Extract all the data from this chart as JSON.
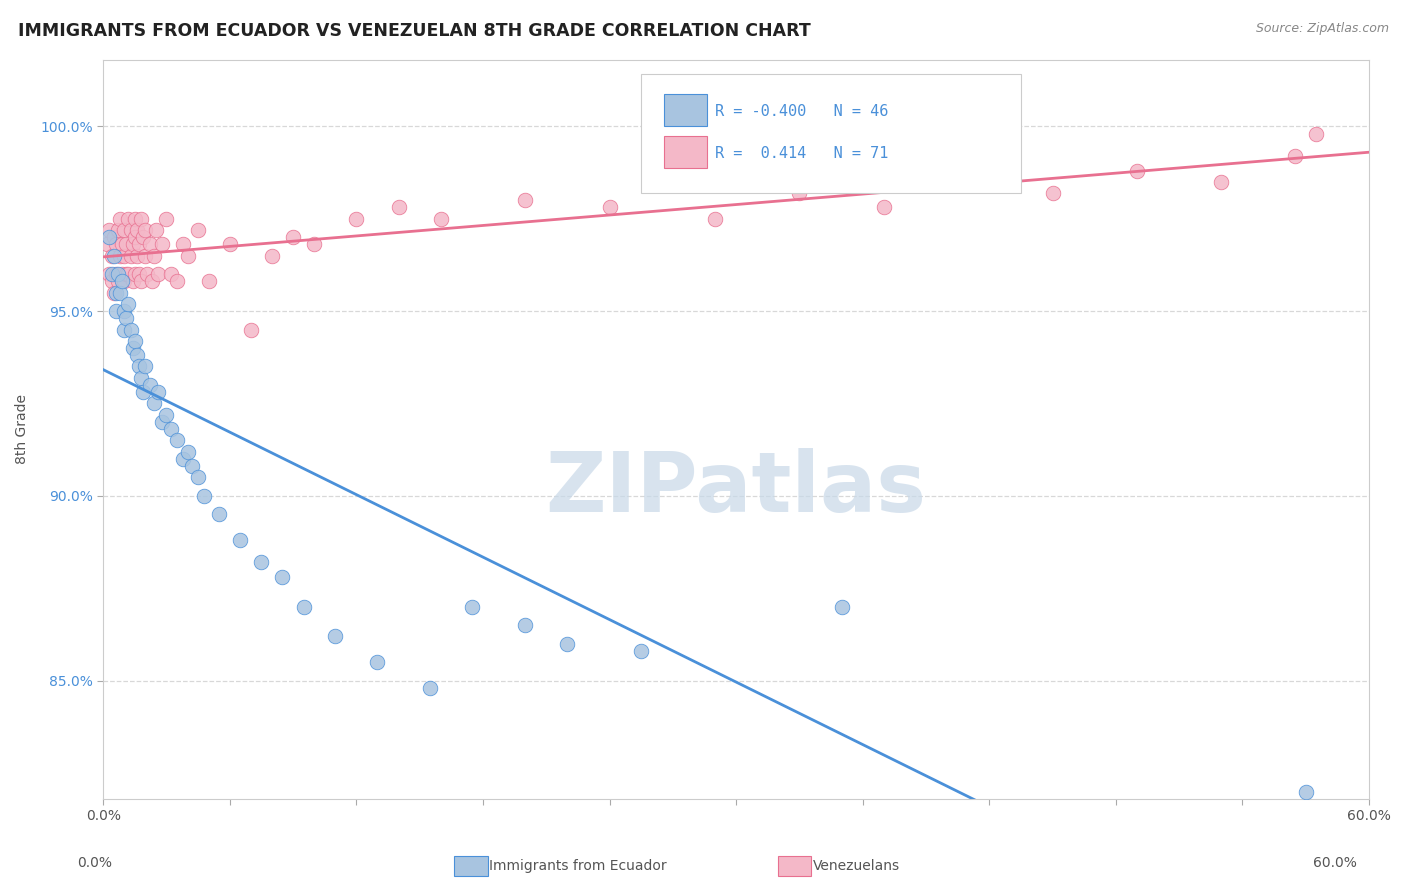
{
  "title": "IMMIGRANTS FROM ECUADOR VS VENEZUELAN 8TH GRADE CORRELATION CHART",
  "source_text": "Source: ZipAtlas.com",
  "ylabel": "8th Grade",
  "xlim": [
    0.0,
    0.6
  ],
  "ylim": [
    0.818,
    1.018
  ],
  "xticks": [
    0.0,
    0.06,
    0.12,
    0.18,
    0.24,
    0.3,
    0.36,
    0.42,
    0.48,
    0.54,
    0.6
  ],
  "xticklabels": [
    "0.0%",
    "",
    "",
    "",
    "",
    "",
    "",
    "",
    "",
    "",
    "60.0%"
  ],
  "yticks": [
    0.85,
    0.9,
    0.95,
    1.0
  ],
  "yticklabels": [
    "85.0%",
    "90.0%",
    "95.0%",
    "100.0%"
  ],
  "ecuador_R": -0.4,
  "ecuador_N": 46,
  "venezuelan_R": 0.414,
  "venezuelan_N": 71,
  "ecuador_color": "#a8c4e0",
  "venezuelan_color": "#f4b8c8",
  "ecuador_line_color": "#4a90d9",
  "venezuelan_line_color": "#e87090",
  "watermark": "ZIPatlas",
  "watermark_color": "#c8d8e8",
  "background_color": "#ffffff",
  "grid_color": "#d8d8d8",
  "ecuador_scatter_x": [
    0.003,
    0.004,
    0.005,
    0.006,
    0.006,
    0.007,
    0.008,
    0.009,
    0.01,
    0.01,
    0.011,
    0.012,
    0.013,
    0.014,
    0.015,
    0.016,
    0.017,
    0.018,
    0.019,
    0.02,
    0.022,
    0.024,
    0.026,
    0.028,
    0.03,
    0.032,
    0.035,
    0.038,
    0.04,
    0.042,
    0.045,
    0.048,
    0.055,
    0.065,
    0.075,
    0.085,
    0.095,
    0.11,
    0.13,
    0.155,
    0.175,
    0.2,
    0.22,
    0.255,
    0.35,
    0.57
  ],
  "ecuador_scatter_y": [
    0.97,
    0.96,
    0.965,
    0.955,
    0.95,
    0.96,
    0.955,
    0.958,
    0.95,
    0.945,
    0.948,
    0.952,
    0.945,
    0.94,
    0.942,
    0.938,
    0.935,
    0.932,
    0.928,
    0.935,
    0.93,
    0.925,
    0.928,
    0.92,
    0.922,
    0.918,
    0.915,
    0.91,
    0.912,
    0.908,
    0.905,
    0.9,
    0.895,
    0.888,
    0.882,
    0.878,
    0.87,
    0.862,
    0.855,
    0.848,
    0.87,
    0.865,
    0.86,
    0.858,
    0.87,
    0.82
  ],
  "venezuelan_scatter_x": [
    0.002,
    0.003,
    0.003,
    0.004,
    0.004,
    0.005,
    0.005,
    0.006,
    0.006,
    0.007,
    0.007,
    0.008,
    0.008,
    0.009,
    0.009,
    0.01,
    0.01,
    0.01,
    0.011,
    0.011,
    0.012,
    0.012,
    0.013,
    0.013,
    0.014,
    0.014,
    0.015,
    0.015,
    0.015,
    0.016,
    0.016,
    0.017,
    0.017,
    0.018,
    0.018,
    0.019,
    0.02,
    0.02,
    0.021,
    0.022,
    0.023,
    0.024,
    0.025,
    0.026,
    0.028,
    0.03,
    0.032,
    0.035,
    0.038,
    0.04,
    0.045,
    0.05,
    0.06,
    0.07,
    0.08,
    0.09,
    0.1,
    0.12,
    0.14,
    0.16,
    0.2,
    0.24,
    0.29,
    0.33,
    0.37,
    0.41,
    0.45,
    0.49,
    0.53,
    0.565,
    0.575
  ],
  "venezuelan_scatter_y": [
    0.968,
    0.972,
    0.96,
    0.965,
    0.958,
    0.97,
    0.955,
    0.968,
    0.96,
    0.972,
    0.958,
    0.965,
    0.975,
    0.96,
    0.968,
    0.972,
    0.958,
    0.965,
    0.96,
    0.968,
    0.975,
    0.96,
    0.965,
    0.972,
    0.958,
    0.968,
    0.975,
    0.96,
    0.97,
    0.965,
    0.972,
    0.96,
    0.968,
    0.975,
    0.958,
    0.97,
    0.965,
    0.972,
    0.96,
    0.968,
    0.958,
    0.965,
    0.972,
    0.96,
    0.968,
    0.975,
    0.96,
    0.958,
    0.968,
    0.965,
    0.972,
    0.958,
    0.968,
    0.945,
    0.965,
    0.97,
    0.968,
    0.975,
    0.978,
    0.975,
    0.98,
    0.978,
    0.975,
    0.982,
    0.978,
    0.985,
    0.982,
    0.988,
    0.985,
    0.992,
    0.998
  ],
  "legend_R1_color": "#4a90d9",
  "legend_R2_color": "#4a90d9",
  "title_color": "#222222",
  "axis_color": "#555555",
  "tick_color": "#555555"
}
